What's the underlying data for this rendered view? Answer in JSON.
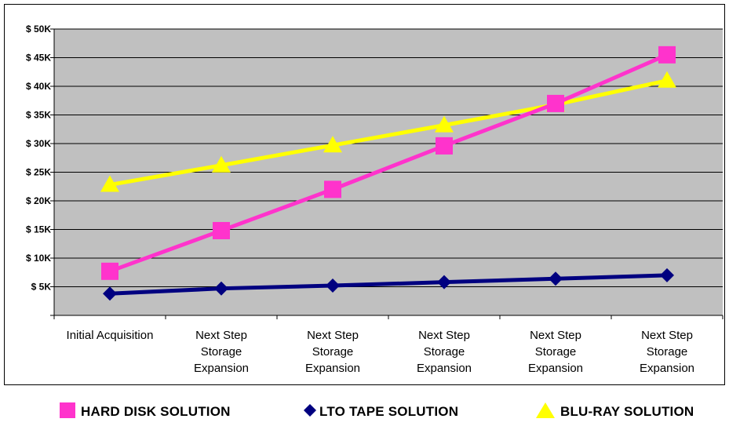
{
  "colors": {
    "plot_bg": "#c0c0c0",
    "hard_disk": "#ff33cc",
    "lto_tape": "#000080",
    "blu_ray": "#ffff00"
  },
  "chart_data": {
    "type": "line",
    "title": "",
    "xlabel": "",
    "ylabel": "",
    "ylim": [
      0,
      50000
    ],
    "yticks": [
      5000,
      10000,
      15000,
      20000,
      25000,
      30000,
      35000,
      40000,
      45000,
      50000
    ],
    "ytick_labels": [
      "$ 5K",
      "$ 10K",
      "$ 15K",
      "$ 20K",
      "$ 25K",
      "$ 30K",
      "$ 35K",
      "$ 40K",
      "$ 45K",
      "$ 50K"
    ],
    "categories": [
      [
        "Initial Acquisition"
      ],
      [
        "Next Step",
        "Storage",
        "Expansion"
      ],
      [
        "Next Step",
        "Storage",
        "Expansion"
      ],
      [
        "Next Step",
        "Storage",
        "Expansion"
      ],
      [
        "Next Step",
        "Storage",
        "Expansion"
      ],
      [
        "Next Step",
        "Storage",
        "Expansion"
      ]
    ],
    "grid": true,
    "legend_position": "bottom",
    "series": [
      {
        "name": "HARD DISK SOLUTION",
        "marker": "square",
        "color": "#ff33cc",
        "values": [
          7700,
          14800,
          22000,
          29600,
          37000,
          45500
        ]
      },
      {
        "name": "LTO TAPE SOLUTION",
        "marker": "diamond",
        "color": "#000080",
        "values": [
          3800,
          4700,
          5200,
          5800,
          6400,
          7000
        ]
      },
      {
        "name": "BLU-RAY SOLUTION",
        "marker": "triangle",
        "color": "#ffff00",
        "values": [
          22800,
          26200,
          29700,
          33200,
          36800,
          41000
        ]
      }
    ]
  }
}
